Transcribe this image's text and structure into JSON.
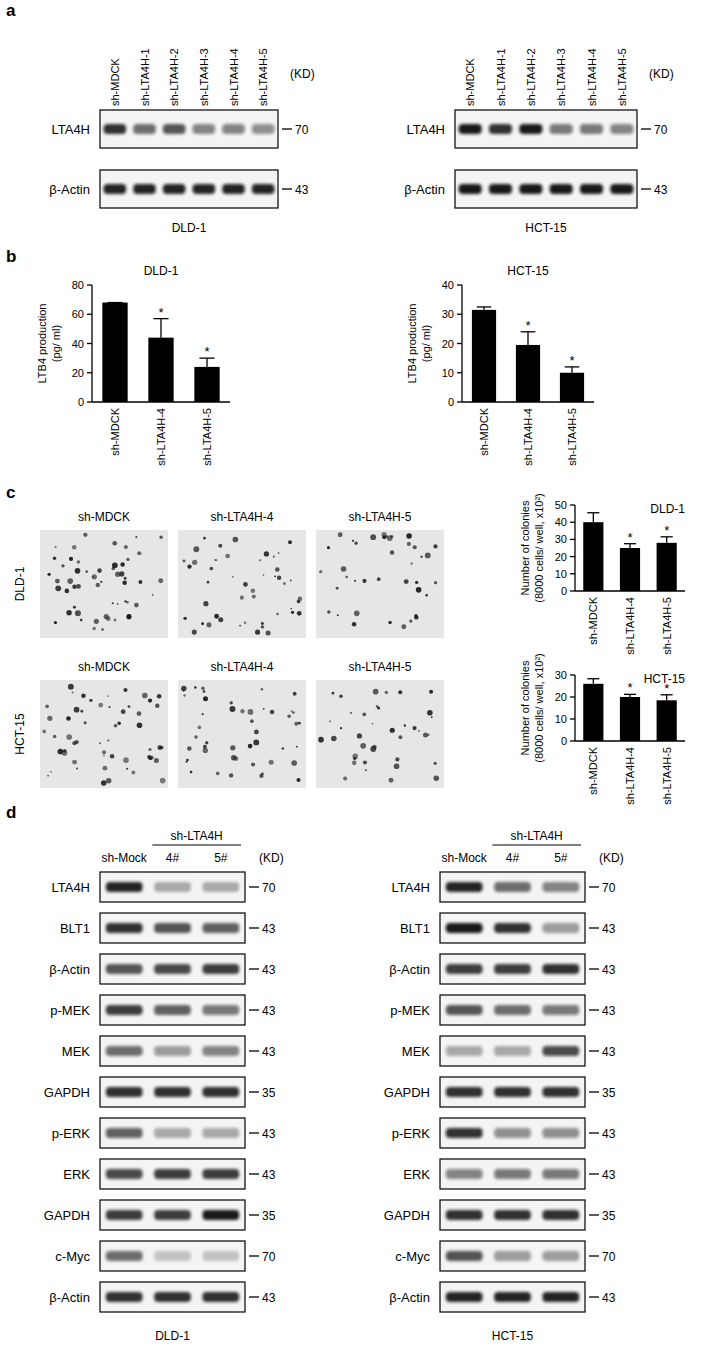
{
  "panel_labels": [
    "a",
    "b",
    "c",
    "d"
  ],
  "blots_a": [
    {
      "cell_line": "DLD-1",
      "unit": "(KD)",
      "lanes": [
        "sh-MDCK",
        "sh-LTA4H-1",
        "sh-LTA4H-2",
        "sh-LTA4H-3",
        "sh-LTA4H-4",
        "sh-LTA4H-5"
      ],
      "rows": [
        {
          "label": "LTA4H",
          "marker": 70,
          "bands": [
            0.85,
            0.6,
            0.7,
            0.5,
            0.5,
            0.45
          ]
        },
        {
          "label": "β-Actin",
          "marker": 43,
          "bands": [
            0.9,
            0.9,
            0.9,
            0.9,
            0.9,
            0.9
          ]
        }
      ]
    },
    {
      "cell_line": "HCT-15",
      "unit": "(KD)",
      "lanes": [
        "sh-MDCK",
        "sh-LTA4H-1",
        "sh-LTA4H-2",
        "sh-LTA4H-3",
        "sh-LTA4H-4",
        "sh-LTA4H-5"
      ],
      "rows": [
        {
          "label": "LTA4H",
          "marker": 70,
          "bands": [
            0.95,
            0.85,
            0.95,
            0.55,
            0.55,
            0.5
          ]
        },
        {
          "label": "β-Actin",
          "marker": 43,
          "bands": [
            0.95,
            0.95,
            0.95,
            0.95,
            0.95,
            0.95
          ]
        }
      ]
    }
  ],
  "chart_data": [
    {
      "type": "bar",
      "title": "DLD-1",
      "y_label": "LTB4 production (pg/ ml)",
      "categories": [
        "sh-MDCK",
        "sh-LTA4H-4",
        "sh-LTA4H-5"
      ],
      "values": [
        68,
        44,
        24
      ],
      "errors": [
        0,
        13,
        6
      ],
      "significance": [
        null,
        "*",
        "*"
      ],
      "color": "#000000",
      "ylim": [
        0,
        80
      ],
      "yticks": [
        0,
        20,
        40,
        60,
        80
      ]
    },
    {
      "type": "bar",
      "title": "HCT-15",
      "y_label": "LTB4 production (pg/ ml)",
      "categories": [
        "sh-MDCK",
        "sh-LTA4H-4",
        "sh-LTA4H-5"
      ],
      "values": [
        31.5,
        19.5,
        10
      ],
      "errors": [
        1,
        4.5,
        2
      ],
      "significance": [
        null,
        "*",
        "*"
      ],
      "color": "#000000",
      "ylim": [
        0,
        40
      ],
      "yticks": [
        0,
        10,
        20,
        30,
        40
      ]
    },
    {
      "type": "bar",
      "title": "DLD-1",
      "y_label": "Number of colonies (8000 cells/ well, x10²)",
      "categories": [
        "sh-MDCK",
        "sh-LTA4H-4",
        "sh-LTA4H-5"
      ],
      "values": [
        40,
        25,
        28
      ],
      "errors": [
        5.5,
        2.5,
        3.5
      ],
      "significance": [
        null,
        "*",
        "*"
      ],
      "color": "#000000",
      "ylim": [
        0,
        50
      ],
      "yticks": [
        0,
        10,
        20,
        30,
        40,
        50
      ]
    },
    {
      "type": "bar",
      "title": "HCT-15",
      "y_label": "Number of colonies (8000 cells/ well, x10²)",
      "categories": [
        "sh-MDCK",
        "sh-LTA4H-4",
        "sh-LTA4H-5"
      ],
      "values": [
        26,
        20,
        18.5
      ],
      "errors": [
        2.3,
        1.2,
        2.5
      ],
      "significance": [
        null,
        "*",
        "*"
      ],
      "color": "#000000",
      "ylim": [
        0,
        30
      ],
      "yticks": [
        0,
        10,
        20,
        30
      ]
    }
  ],
  "colonies": {
    "lanes": [
      "sh-MDCK",
      "sh-LTA4H-4",
      "sh-LTA4H-5"
    ],
    "cell_lines": [
      "DLD-1",
      "HCT-15"
    ]
  },
  "blots_d": [
    {
      "cell_line": "DLD-1",
      "unit": "(KD)",
      "group": "sh-LTA4H",
      "lanes": [
        "sh-Mock",
        "4#",
        "5#"
      ],
      "rows": [
        {
          "label": "LTA4H",
          "marker": 70,
          "bands": [
            0.9,
            0.3,
            0.3
          ]
        },
        {
          "label": "BLT1",
          "marker": 43,
          "bands": [
            0.85,
            0.7,
            0.65
          ]
        },
        {
          "label": "β-Actin",
          "marker": 43,
          "bands": [
            0.7,
            0.75,
            0.8
          ]
        },
        {
          "label": "p-MEK",
          "marker": 43,
          "bands": [
            0.8,
            0.65,
            0.55
          ]
        },
        {
          "label": "MEK",
          "marker": 43,
          "bands": [
            0.6,
            0.4,
            0.5
          ]
        },
        {
          "label": "GAPDH",
          "marker": 35,
          "bands": [
            0.85,
            0.85,
            0.85
          ]
        },
        {
          "label": "p-ERK",
          "marker": 43,
          "bands": [
            0.65,
            0.35,
            0.35
          ]
        },
        {
          "label": "ERK",
          "marker": 43,
          "bands": [
            0.75,
            0.8,
            0.8
          ]
        },
        {
          "label": "GAPDH",
          "marker": 35,
          "bands": [
            0.8,
            0.8,
            0.95
          ]
        },
        {
          "label": "c-Myc",
          "marker": 70,
          "bands": [
            0.6,
            0.2,
            0.2
          ]
        },
        {
          "label": "β-Actin",
          "marker": 43,
          "bands": [
            0.85,
            0.85,
            0.85
          ]
        }
      ]
    },
    {
      "cell_line": "HCT-15",
      "unit": "(KD)",
      "group": "sh-LTA4H",
      "lanes": [
        "sh-Mock",
        "4#",
        "5#"
      ],
      "rows": [
        {
          "label": "LTA4H",
          "marker": 70,
          "bands": [
            0.9,
            0.6,
            0.5
          ]
        },
        {
          "label": "BLT1",
          "marker": 43,
          "bands": [
            0.95,
            0.85,
            0.4
          ]
        },
        {
          "label": "β-Actin",
          "marker": 43,
          "bands": [
            0.8,
            0.8,
            0.85
          ]
        },
        {
          "label": "p-MEK",
          "marker": 43,
          "bands": [
            0.7,
            0.6,
            0.55
          ]
        },
        {
          "label": "MEK",
          "marker": 43,
          "bands": [
            0.35,
            0.35,
            0.75
          ]
        },
        {
          "label": "GAPDH",
          "marker": 35,
          "bands": [
            0.85,
            0.85,
            0.85
          ]
        },
        {
          "label": "p-ERK",
          "marker": 43,
          "bands": [
            0.85,
            0.45,
            0.45
          ]
        },
        {
          "label": "ERK",
          "marker": 43,
          "bands": [
            0.5,
            0.55,
            0.55
          ]
        },
        {
          "label": "GAPDH",
          "marker": 35,
          "bands": [
            0.85,
            0.85,
            0.85
          ]
        },
        {
          "label": "c-Myc",
          "marker": 70,
          "bands": [
            0.7,
            0.4,
            0.4
          ]
        },
        {
          "label": "β-Actin",
          "marker": 43,
          "bands": [
            0.9,
            0.9,
            0.9
          ]
        }
      ]
    }
  ]
}
